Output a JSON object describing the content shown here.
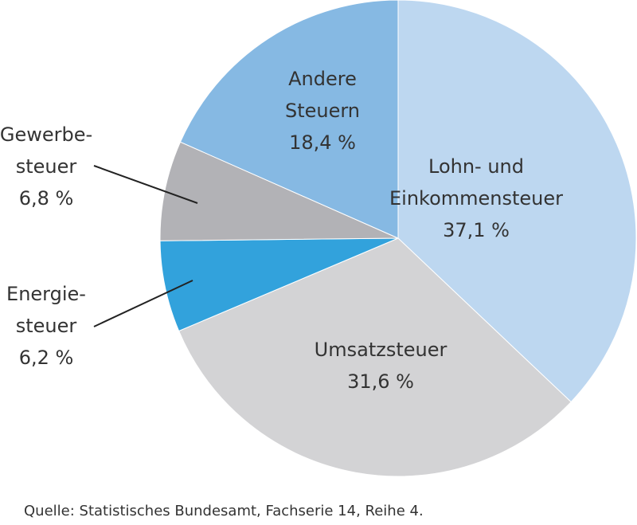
{
  "chart_data": {
    "type": "pie",
    "categories": [
      [
        "Lohn- und",
        "Einkommensteuer"
      ],
      [
        "Umsatzsteuer"
      ],
      [
        "Energie-",
        "steuer"
      ],
      [
        "Gewerbe-",
        "steuer"
      ],
      [
        "Andere",
        "Steuern"
      ]
    ],
    "values": [
      37.1,
      31.6,
      6.2,
      6.8,
      18.4
    ],
    "value_labels": [
      "37,1 %",
      "31,6 %",
      "6,2 %",
      "6,8 %",
      "18,4 %"
    ],
    "colors": [
      "#bdd7f0",
      "#d3d3d5",
      "#32a2dc",
      "#b2b2b6",
      "#86b9e3"
    ],
    "source": "Quelle: Statistisches Bundesamt, Fachserie 14, Reihe 4."
  }
}
